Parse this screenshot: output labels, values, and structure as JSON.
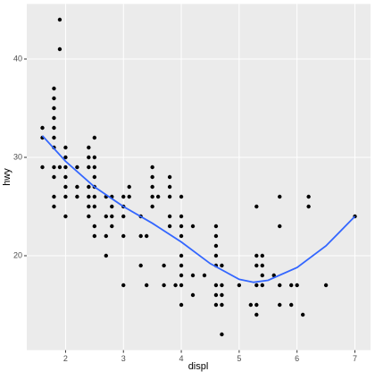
{
  "chart_data": {
    "type": "scatter",
    "x_label": "displ",
    "y_label": "hwy",
    "x": [
      1.6,
      1.6,
      1.6,
      1.8,
      1.8,
      1.8,
      1.8,
      1.8,
      1.8,
      1.8,
      1.8,
      1.8,
      1.8,
      1.8,
      1.9,
      1.9,
      1.9,
      2.0,
      2.0,
      2.0,
      2.0,
      2.0,
      2.0,
      2.0,
      2.2,
      2.2,
      2.2,
      2.4,
      2.4,
      2.4,
      2.4,
      2.4,
      2.4,
      2.4,
      2.5,
      2.5,
      2.5,
      2.5,
      2.5,
      2.5,
      2.5,
      2.5,
      2.5,
      2.7,
      2.7,
      2.7,
      2.7,
      2.8,
      2.8,
      2.8,
      2.8,
      3.0,
      3.0,
      3.0,
      3.0,
      3.0,
      3.1,
      3.1,
      3.3,
      3.3,
      3.3,
      3.4,
      3.4,
      3.5,
      3.5,
      3.5,
      3.5,
      3.5,
      3.6,
      3.7,
      3.7,
      3.8,
      3.8,
      3.8,
      3.8,
      3.8,
      3.9,
      4.0,
      4.0,
      4.0,
      4.0,
      4.0,
      4.0,
      4.0,
      4.0,
      4.0,
      4.2,
      4.2,
      4.2,
      4.4,
      4.6,
      4.6,
      4.6,
      4.6,
      4.6,
      4.6,
      4.6,
      4.6,
      4.7,
      4.7,
      4.7,
      4.7,
      4.7,
      5.0,
      5.2,
      5.3,
      5.3,
      5.3,
      5.3,
      5.3,
      5.3,
      5.4,
      5.4,
      5.4,
      5.4,
      5.6,
      5.7,
      5.7,
      5.7,
      5.7,
      5.9,
      5.9,
      6.0,
      6.1,
      6.2,
      6.2,
      6.5,
      7.0
    ],
    "values": [
      33,
      32,
      29,
      37,
      36,
      35,
      34,
      33,
      32,
      31,
      29,
      28,
      26,
      25,
      44,
      41,
      29,
      31,
      30,
      29,
      28,
      27,
      26,
      24,
      29,
      27,
      26,
      31,
      30,
      29,
      27,
      26,
      25,
      24,
      32,
      30,
      29,
      28,
      27,
      26,
      25,
      23,
      22,
      26,
      24,
      22,
      20,
      26,
      25,
      24,
      23,
      26,
      25,
      24,
      22,
      17,
      27,
      26,
      24,
      22,
      19,
      22,
      17,
      29,
      28,
      27,
      26,
      25,
      26,
      19,
      17,
      28,
      27,
      26,
      24,
      23,
      17,
      26,
      24,
      23,
      22,
      20,
      19,
      18,
      17,
      15,
      23,
      18,
      16,
      18,
      23,
      22,
      21,
      20,
      19,
      17,
      16,
      15,
      19,
      17,
      16,
      15,
      12,
      17,
      15,
      25,
      20,
      19,
      17,
      15,
      14,
      20,
      19,
      18,
      17,
      18,
      26,
      23,
      17,
      15,
      17,
      15,
      17,
      14,
      26,
      25,
      17,
      24
    ],
    "color": "#000000",
    "smooth": {
      "x": [
        1.6,
        2.0,
        2.5,
        3.0,
        3.5,
        4.0,
        4.5,
        5.0,
        5.25,
        5.5,
        6.0,
        6.5,
        7.0
      ],
      "values": [
        32.2,
        29.6,
        27.0,
        25.0,
        23.3,
        21.4,
        19.2,
        17.6,
        17.3,
        17.5,
        18.8,
        21.0,
        24.0
      ],
      "color": "#3366ff"
    },
    "xlim": [
      1.33,
      7.27
    ],
    "ylim": [
      10.4,
      45.6
    ],
    "xticks": [
      2,
      3,
      4,
      5,
      6,
      7
    ],
    "yticks": [
      20,
      30,
      40
    ],
    "grid": true
  }
}
